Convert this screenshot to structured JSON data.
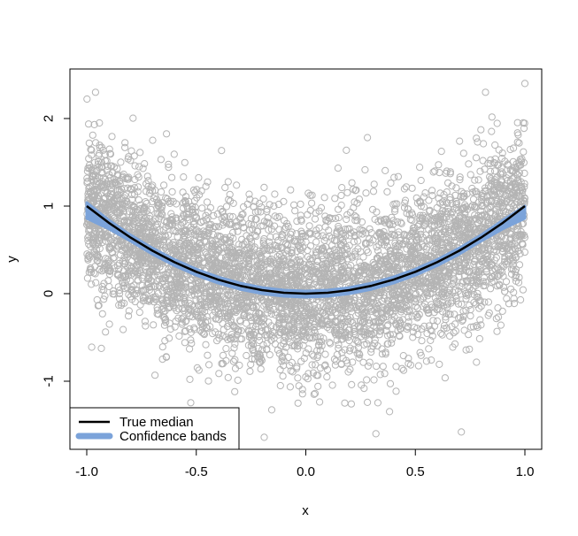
{
  "chart_data": {
    "type": "scatter",
    "title": "",
    "xlabel": "x",
    "ylabel": "y",
    "xlim": [
      -1.0,
      1.0
    ],
    "ylim": [
      -1.8,
      2.45
    ],
    "xticks": [
      -1.0,
      -0.5,
      0.0,
      0.5,
      1.0
    ],
    "xtick_labels": [
      "-1.0",
      "-0.5",
      "0.0",
      "0.5",
      "1.0"
    ],
    "yticks": [
      -1,
      0,
      1,
      2
    ],
    "ytick_labels": [
      "-1",
      "0",
      "1",
      "2"
    ],
    "grid": false,
    "legend": {
      "placement": "bottom-left",
      "entries": [
        {
          "label": "True median",
          "color": "#000000"
        },
        {
          "label": "Confidence bands",
          "color": "#7ba3da"
        }
      ]
    },
    "scatter": {
      "color": "#b4b4b4",
      "marker": "open-circle",
      "n_points": 5000,
      "x_range": [
        -1.0,
        1.0
      ],
      "center_curve": "y = x^2",
      "spread_sd": 0.45,
      "highlighted_points": [
        {
          "x": -0.96,
          "y": 2.3
        },
        {
          "x": 0.82,
          "y": 2.3
        },
        {
          "x": 1.0,
          "y": 2.4
        },
        {
          "x": 0.71,
          "y": -1.58
        },
        {
          "x": 0.32,
          "y": -1.6
        },
        {
          "x": -0.19,
          "y": -1.64
        }
      ]
    },
    "series": [
      {
        "name": "True median",
        "type": "line",
        "color": "#000000",
        "x": [
          -1.0,
          -0.9,
          -0.8,
          -0.7,
          -0.6,
          -0.5,
          -0.4,
          -0.3,
          -0.2,
          -0.1,
          0.0,
          0.1,
          0.2,
          0.3,
          0.4,
          0.5,
          0.6,
          0.7,
          0.8,
          0.9,
          1.0
        ],
        "y": [
          1.0,
          0.81,
          0.64,
          0.49,
          0.36,
          0.25,
          0.16,
          0.09,
          0.04,
          0.01,
          0.0,
          0.01,
          0.04,
          0.09,
          0.16,
          0.25,
          0.36,
          0.49,
          0.64,
          0.81,
          1.0
        ]
      },
      {
        "name": "Confidence bands",
        "type": "band",
        "color": "#7ba3da",
        "x": [
          -1.0,
          -0.9,
          -0.8,
          -0.7,
          -0.6,
          -0.5,
          -0.4,
          -0.3,
          -0.2,
          -0.1,
          0.0,
          0.1,
          0.2,
          0.3,
          0.4,
          0.5,
          0.6,
          0.7,
          0.8,
          0.9,
          1.0
        ],
        "lower": [
          0.86,
          0.74,
          0.6,
          0.45,
          0.32,
          0.21,
          0.12,
          0.05,
          0.0,
          -0.03,
          -0.04,
          -0.03,
          0.0,
          0.05,
          0.12,
          0.21,
          0.32,
          0.45,
          0.6,
          0.74,
          0.86
        ],
        "upper": [
          1.04,
          0.84,
          0.67,
          0.52,
          0.39,
          0.28,
          0.19,
          0.12,
          0.07,
          0.04,
          0.03,
          0.04,
          0.07,
          0.12,
          0.19,
          0.28,
          0.39,
          0.52,
          0.67,
          0.84,
          1.0
        ]
      }
    ]
  }
}
